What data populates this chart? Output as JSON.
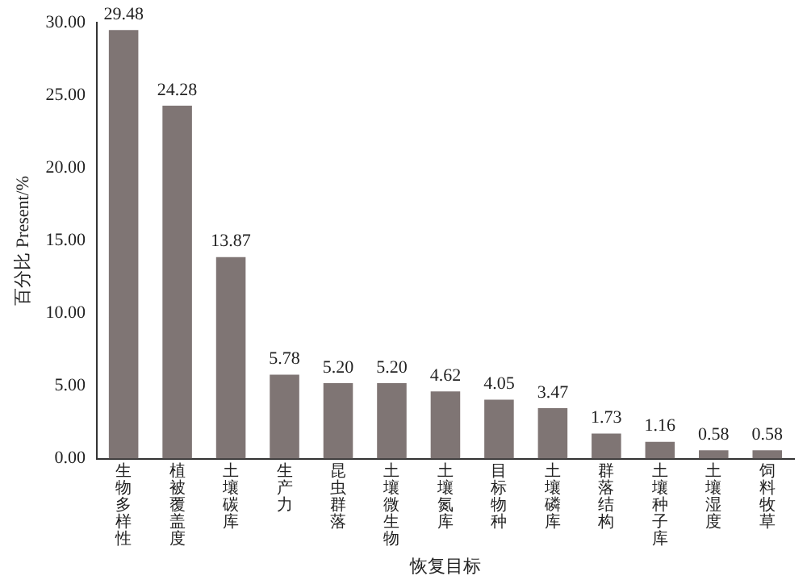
{
  "chart_data": {
    "type": "bar",
    "ylabel": "百分比 Present/%",
    "xlabel": "恢复目标",
    "categories": [
      "生物多样性",
      "植被覆盖度",
      "土壤碳库",
      "生产力",
      "昆虫群落",
      "土壤微生物",
      "土壤氮库",
      "目标物种",
      "土壤磷库",
      "群落结构",
      "土壤种子库",
      "土壤湿度",
      "饲料牧草"
    ],
    "values": [
      29.48,
      24.28,
      13.87,
      5.78,
      5.2,
      5.2,
      4.62,
      4.05,
      3.47,
      1.73,
      1.16,
      0.58,
      0.58
    ],
    "value_labels": [
      "29.48",
      "24.28",
      "13.87",
      "5.78",
      "5.20",
      "5.20",
      "4.62",
      "4.05",
      "3.47",
      "1.73",
      "1.16",
      "0.58",
      "0.58"
    ],
    "color": "#7f7574",
    "ylim": [
      0,
      30
    ],
    "yticks": [
      {
        "value": 0,
        "label": "0.00"
      },
      {
        "value": 5,
        "label": "5.00"
      },
      {
        "value": 10,
        "label": "10.00"
      },
      {
        "value": 15,
        "label": "15.00"
      },
      {
        "value": 20,
        "label": "20.00"
      },
      {
        "value": 25,
        "label": "25.00"
      },
      {
        "value": 30,
        "label": "30.00"
      }
    ],
    "grid": false,
    "legend": false
  }
}
